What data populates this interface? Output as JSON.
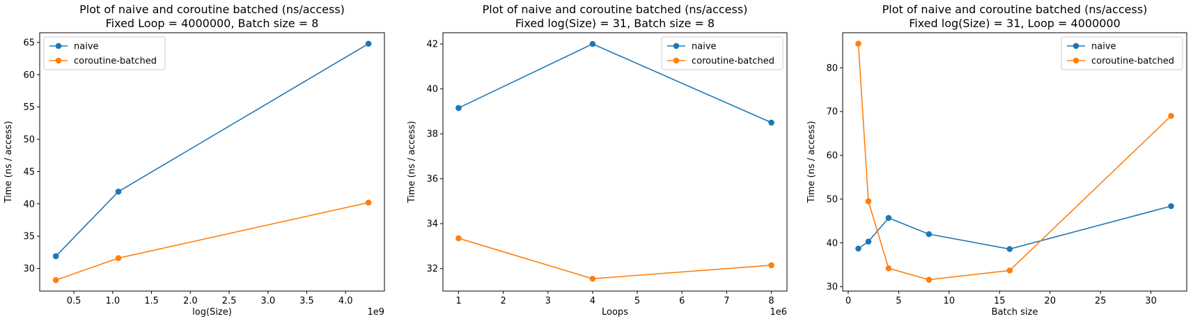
{
  "colors": {
    "naive": "#1f77b4",
    "coroutine": "#ff7f0e"
  },
  "chart_data": [
    {
      "type": "line",
      "title": "Plot of naive and coroutine batched (ns/access)",
      "subtitle": "Fixed Loop = 4000000, Batch size = 8",
      "xlabel": "log(Size)",
      "ylabel": "Time (ns / access)",
      "x_offset_label": "1e9",
      "x_scale": 1000000000,
      "xlim": [
        60000000.0,
        4500000000.0
      ],
      "ylim": [
        26.5,
        66.5
      ],
      "xticks": [
        500000000.0,
        1000000000.0,
        1500000000.0,
        2000000000.0,
        2500000000.0,
        3000000000.0,
        3500000000.0,
        4000000000.0
      ],
      "xtick_labels": [
        "0.5",
        "1.0",
        "1.5",
        "2.0",
        "2.5",
        "3.0",
        "3.5",
        "4.0"
      ],
      "yticks": [
        30,
        35,
        40,
        45,
        50,
        55,
        60,
        65
      ],
      "ytick_labels": [
        "30",
        "35",
        "40",
        "45",
        "50",
        "55",
        "60",
        "65"
      ],
      "legend_position": "upper-left",
      "x": [
        268435456,
        1073741824,
        4294967296
      ],
      "series": [
        {
          "name": "naive",
          "values": [
            31.9,
            41.9,
            64.8
          ]
        },
        {
          "name": "coroutine-batched",
          "values": [
            28.2,
            31.6,
            40.2
          ]
        }
      ]
    },
    {
      "type": "line",
      "title": "Plot of naive and coroutine batched (ns/access)",
      "subtitle": "Fixed log(Size) = 31, Batch size = 8",
      "xlabel": "Loops",
      "ylabel": "Time (ns / access)",
      "x_offset_label": "1e6",
      "x_scale": 1000000,
      "xlim": [
        650000.0,
        8350000.0
      ],
      "ylim": [
        31.0,
        42.5
      ],
      "xticks": [
        1000000.0,
        2000000.0,
        3000000.0,
        4000000.0,
        5000000.0,
        6000000.0,
        7000000.0,
        8000000.0
      ],
      "xtick_labels": [
        "1",
        "2",
        "3",
        "4",
        "5",
        "6",
        "7",
        "8"
      ],
      "yticks": [
        32,
        34,
        36,
        38,
        40,
        42
      ],
      "ytick_labels": [
        "32",
        "34",
        "36",
        "38",
        "40",
        "42"
      ],
      "legend_position": "upper-right",
      "x": [
        1000000,
        4000000,
        8000000
      ],
      "series": [
        {
          "name": "naive",
          "values": [
            39.15,
            42.0,
            38.5
          ]
        },
        {
          "name": "coroutine-batched",
          "values": [
            33.35,
            31.55,
            32.15
          ]
        }
      ]
    },
    {
      "type": "line",
      "title": "Plot of naive and coroutine batched (ns/access)",
      "subtitle": "Fixed log(Size) = 31, Loop = 4000000",
      "xlabel": "Batch size",
      "ylabel": "Time (ns / access)",
      "x_offset_label": "",
      "x_scale": 1,
      "xlim": [
        -0.55,
        33.55
      ],
      "ylim": [
        29.0,
        88.0
      ],
      "xticks": [
        0,
        5,
        10,
        15,
        20,
        25,
        30
      ],
      "xtick_labels": [
        "0",
        "5",
        "10",
        "15",
        "20",
        "25",
        "30"
      ],
      "yticks": [
        30,
        40,
        50,
        60,
        70,
        80
      ],
      "ytick_labels": [
        "30",
        "40",
        "50",
        "60",
        "70",
        "80"
      ],
      "legend_position": "upper-right",
      "x": [
        1,
        2,
        4,
        8,
        16,
        32
      ],
      "series": [
        {
          "name": "naive",
          "values": [
            38.7,
            40.3,
            45.7,
            42.0,
            38.6,
            48.4
          ]
        },
        {
          "name": "coroutine-batched",
          "values": [
            85.5,
            49.5,
            34.2,
            31.6,
            33.7,
            69.0
          ]
        }
      ]
    }
  ]
}
